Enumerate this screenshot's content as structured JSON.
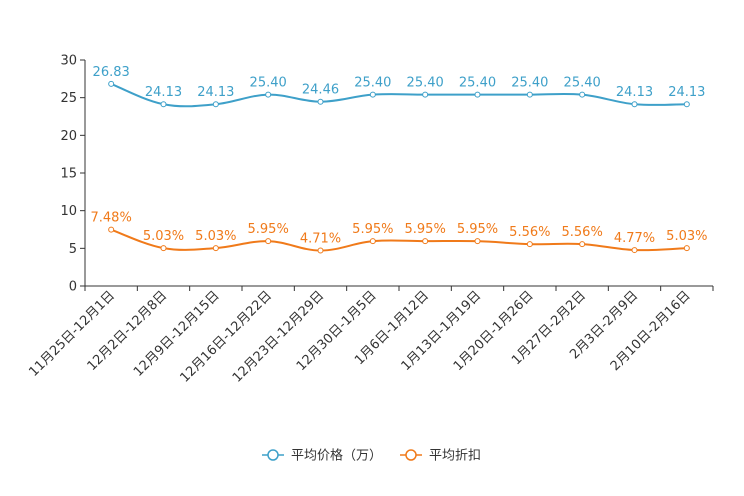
{
  "chart_data": {
    "type": "line",
    "title": "",
    "xlabel": "",
    "ylabel": "",
    "ylim": [
      0,
      30
    ],
    "yticks": [
      0,
      5,
      10,
      15,
      20,
      25,
      30
    ],
    "grid": false,
    "legend_position": "bottom-center",
    "categories": [
      "11月25日-12月1日",
      "12月2日-12月8日",
      "12月9日-12月15日",
      "12月16日-12月22日",
      "12月23日-12月29日",
      "12月30日-1月5日",
      "1月6日-1月12日",
      "1月13日-1月19日",
      "1月20日-1月26日",
      "1月27日-2月2日",
      "2月3日-2月9日",
      "2月10日-2月16日"
    ],
    "series": [
      {
        "name": "平均价格（万）",
        "color": "#3ea0c9",
        "values": [
          26.83,
          24.13,
          24.13,
          25.4,
          24.46,
          25.4,
          25.4,
          25.4,
          25.4,
          25.4,
          24.13,
          24.13
        ],
        "labels": [
          "26.83",
          "24.13",
          "24.13",
          "25.40",
          "24.46",
          "25.40",
          "25.40",
          "25.40",
          "25.40",
          "25.40",
          "24.13",
          "24.13"
        ]
      },
      {
        "name": "平均折扣",
        "color": "#f07a1a",
        "values": [
          7.48,
          5.03,
          5.03,
          5.95,
          4.71,
          5.95,
          5.95,
          5.95,
          5.56,
          5.56,
          4.77,
          5.03
        ],
        "labels": [
          "7.48%",
          "5.03%",
          "5.03%",
          "5.95%",
          "4.71%",
          "5.95%",
          "5.95%",
          "5.95%",
          "5.56%",
          "5.56%",
          "4.77%",
          "5.03%"
        ]
      }
    ]
  }
}
